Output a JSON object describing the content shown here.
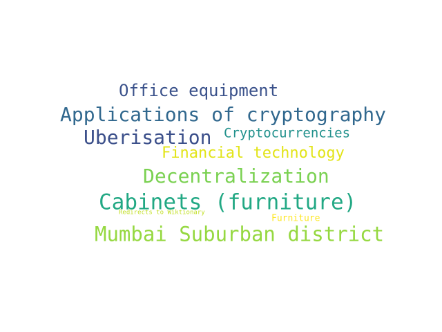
{
  "words": [
    {
      "text": "Office equipment",
      "color": "#3b528b"
    },
    {
      "text": "Applications of cryptography",
      "color": "#31688e"
    },
    {
      "text": "Uberisation",
      "color": "#3b4f8a"
    },
    {
      "text": "Cryptocurrencies",
      "color": "#21918c"
    },
    {
      "text": "Financial technology",
      "color": "#e2e418"
    },
    {
      "text": "Decentralization",
      "color": "#7ad151"
    },
    {
      "text": "Cabinets (furniture)",
      "color": "#22a884"
    },
    {
      "text": "Redirects to Wiktionary",
      "color": "#c2df23"
    },
    {
      "text": "Furniture",
      "color": "#fde725"
    },
    {
      "text": "Mumbai Suburban district",
      "color": "#95d840"
    }
  ]
}
